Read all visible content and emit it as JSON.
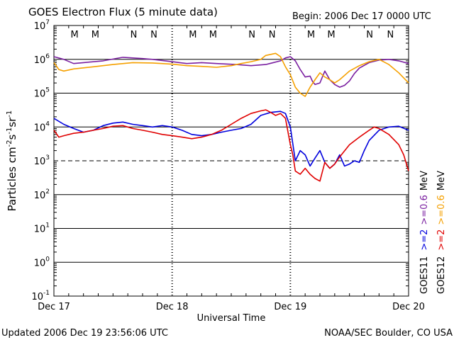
{
  "chart_data": {
    "type": "line",
    "title": "GOES Electron Flux (5 minute data)",
    "begin": "Begin: 2006 Dec 17 0000 UTC",
    "xlabel": "Universal Time",
    "ylabel_parts": [
      "Particles cm",
      "-2",
      "s",
      "-1",
      "sr",
      "-1"
    ],
    "x_ticks": [
      "Dec 17",
      "Dec 18",
      "Dec 19",
      "Dec 20"
    ],
    "xlim": [
      0,
      72
    ],
    "y_scale": "log",
    "ylim": [
      0.1,
      10000000
    ],
    "y_ticks": [
      {
        "base": "10",
        "exp": "-1"
      },
      {
        "base": "10",
        "exp": "0"
      },
      {
        "base": "10",
        "exp": "1"
      },
      {
        "base": "10",
        "exp": "2"
      },
      {
        "base": "10",
        "exp": "3"
      },
      {
        "base": "10",
        "exp": "4"
      },
      {
        "base": "10",
        "exp": "5"
      },
      {
        "base": "10",
        "exp": "6"
      },
      {
        "base": "10",
        "exp": "7"
      }
    ],
    "threshold_line": 1000,
    "mn_markers": [
      {
        "label": "M",
        "hour": 4.2,
        "color": "#e00000"
      },
      {
        "label": "M",
        "hour": 8.4,
        "color": "#0000dd"
      },
      {
        "label": "N",
        "hour": 16.2,
        "color": "#e00000"
      },
      {
        "label": "N",
        "hour": 20.3,
        "color": "#0000dd"
      },
      {
        "label": "M",
        "hour": 28.2,
        "color": "#e00000"
      },
      {
        "label": "M",
        "hour": 32.3,
        "color": "#0000dd"
      },
      {
        "label": "N",
        "hour": 40.2,
        "color": "#e00000"
      },
      {
        "label": "N",
        "hour": 44.3,
        "color": "#0000dd"
      },
      {
        "label": "M",
        "hour": 52.2,
        "color": "#e00000"
      },
      {
        "label": "M",
        "hour": 56.3,
        "color": "#0000dd"
      },
      {
        "label": "N",
        "hour": 64.1,
        "color": "#e00000"
      },
      {
        "label": "N",
        "hour": 68.3,
        "color": "#0000dd"
      }
    ],
    "legend": [
      {
        "satellite": "GOES11",
        "entries": [
          {
            "text": ">=2",
            "color": "#0000dd"
          },
          {
            "text": ">=0.6",
            "color": "#7a1fa0"
          }
        ],
        "unit": "MeV"
      },
      {
        "satellite": "GOES12",
        "entries": [
          {
            "text": ">=2",
            "color": "#e00000"
          },
          {
            "text": ">=0.6",
            "color": "#f5a000"
          }
        ],
        "unit": "MeV"
      }
    ],
    "series": [
      {
        "name": "GOES11 >=0.6 MeV",
        "color": "#7a1fa0",
        "x": [
          0,
          2,
          4,
          6,
          10,
          14,
          18,
          20,
          24,
          27,
          30,
          33,
          37,
          40,
          43,
          46,
          47,
          48,
          49,
          50,
          51,
          52,
          52.5,
          53,
          54,
          55,
          56,
          57,
          58,
          59,
          60,
          61,
          62,
          64,
          66,
          68,
          70,
          72
        ],
        "y": [
          1200000,
          1000000,
          750000,
          800000,
          900000,
          1150000,
          1050000,
          1000000,
          850000,
          750000,
          800000,
          750000,
          700000,
          650000,
          700000,
          900000,
          1100000,
          1200000,
          900000,
          500000,
          300000,
          320000,
          220000,
          180000,
          200000,
          450000,
          250000,
          180000,
          150000,
          170000,
          230000,
          380000,
          550000,
          800000,
          950000,
          1000000,
          900000,
          750000
        ]
      },
      {
        "name": "GOES12 >=0.6 MeV",
        "color": "#f5a000",
        "x": [
          0,
          1,
          2,
          4,
          8,
          12,
          16,
          20,
          24,
          27,
          30,
          33,
          36,
          38,
          40,
          42,
          43,
          44,
          45,
          46,
          47,
          48,
          49,
          50,
          51,
          52,
          53,
          54,
          55,
          56,
          57,
          58,
          60,
          62,
          64,
          66,
          68,
          70,
          72
        ],
        "y": [
          800000,
          500000,
          450000,
          520000,
          600000,
          700000,
          800000,
          780000,
          720000,
          650000,
          620000,
          580000,
          650000,
          750000,
          850000,
          1000000,
          1300000,
          1400000,
          1500000,
          1200000,
          600000,
          350000,
          150000,
          100000,
          80000,
          150000,
          250000,
          400000,
          300000,
          250000,
          200000,
          250000,
          450000,
          650000,
          850000,
          1000000,
          700000,
          400000,
          200000
        ]
      },
      {
        "name": "GOES11 >=2 MeV",
        "color": "#0000dd",
        "x": [
          0,
          2,
          4,
          6,
          8,
          10,
          12,
          14,
          16,
          18,
          20,
          22,
          24,
          26,
          28,
          30,
          32,
          34,
          36,
          38,
          40,
          42,
          44,
          46,
          47,
          48,
          49,
          50,
          51,
          52,
          53,
          54,
          55,
          56,
          57,
          58,
          59,
          60,
          61,
          62,
          63,
          64,
          66,
          68,
          70,
          72
        ],
        "y": [
          18000,
          12000,
          9000,
          7000,
          8000,
          11000,
          13000,
          14000,
          12000,
          11000,
          10000,
          11000,
          10000,
          8000,
          6000,
          5500,
          6000,
          7000,
          8000,
          9000,
          12000,
          22000,
          27000,
          29000,
          25000,
          10000,
          1000,
          2000,
          1500,
          700,
          1200,
          2000,
          900,
          600,
          800,
          1500,
          700,
          800,
          1000,
          900,
          2000,
          4000,
          8000,
          10000,
          10500,
          8000
        ]
      },
      {
        "name": "GOES12 >=2 MeV",
        "color": "#e00000",
        "x": [
          0,
          1,
          2,
          4,
          6,
          8,
          10,
          12,
          14,
          16,
          18,
          20,
          22,
          24,
          26,
          28,
          30,
          32,
          34,
          36,
          38,
          40,
          42,
          43,
          44,
          45,
          46,
          47,
          48,
          48.5,
          49,
          50,
          51,
          52,
          53,
          54,
          55,
          56,
          57,
          58,
          60,
          62,
          64,
          65,
          66,
          68,
          70,
          71,
          72
        ],
        "y": [
          8000,
          5000,
          5500,
          6500,
          7000,
          8000,
          9000,
          10500,
          11000,
          9000,
          8000,
          7000,
          6000,
          5500,
          5000,
          4500,
          5000,
          6000,
          8000,
          12000,
          18000,
          25000,
          30000,
          32000,
          27000,
          22000,
          25000,
          18000,
          3000,
          1500,
          500,
          400,
          600,
          400,
          300,
          250,
          900,
          600,
          800,
          1300,
          3000,
          5000,
          8000,
          10000,
          9000,
          6000,
          3000,
          1500,
          500
        ]
      }
    ],
    "grid": "horizontal decade lines",
    "legend_position": "right, vertical"
  },
  "footer": {
    "updated": "Updated 2006 Dec 19 23:56:06 UTC",
    "source": "NOAA/SEC Boulder, CO USA"
  }
}
